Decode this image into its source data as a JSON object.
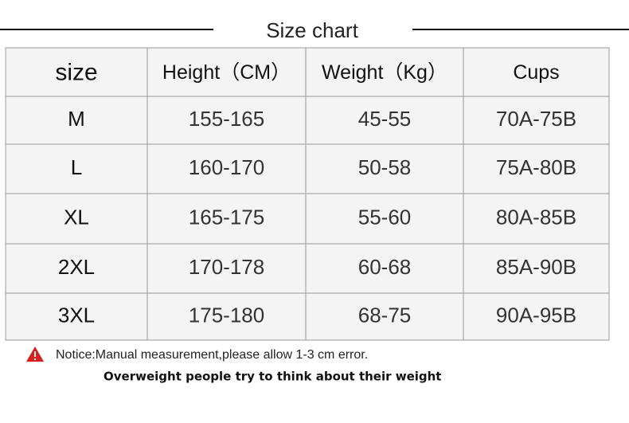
{
  "title": "Size chart",
  "table": {
    "header": [
      "size",
      "Height（CM）",
      "Weight（Kg）",
      "Cups"
    ],
    "rows": [
      [
        "M",
        "155-165",
        "45-55",
        "70A-75B"
      ],
      [
        "L",
        "160-170",
        "50-58",
        "75A-80B"
      ],
      [
        "XL",
        "165-175",
        "55-60",
        "80A-85B"
      ],
      [
        "2XL",
        "170-178",
        "60-68",
        "85A-90B"
      ],
      [
        "3XL",
        "175-180",
        "68-75",
        "90A-95B"
      ]
    ]
  },
  "notice": "Notice:Manual measurement,please allow 1-3 cm error.",
  "note": "Overweight people try to think about their weight"
}
